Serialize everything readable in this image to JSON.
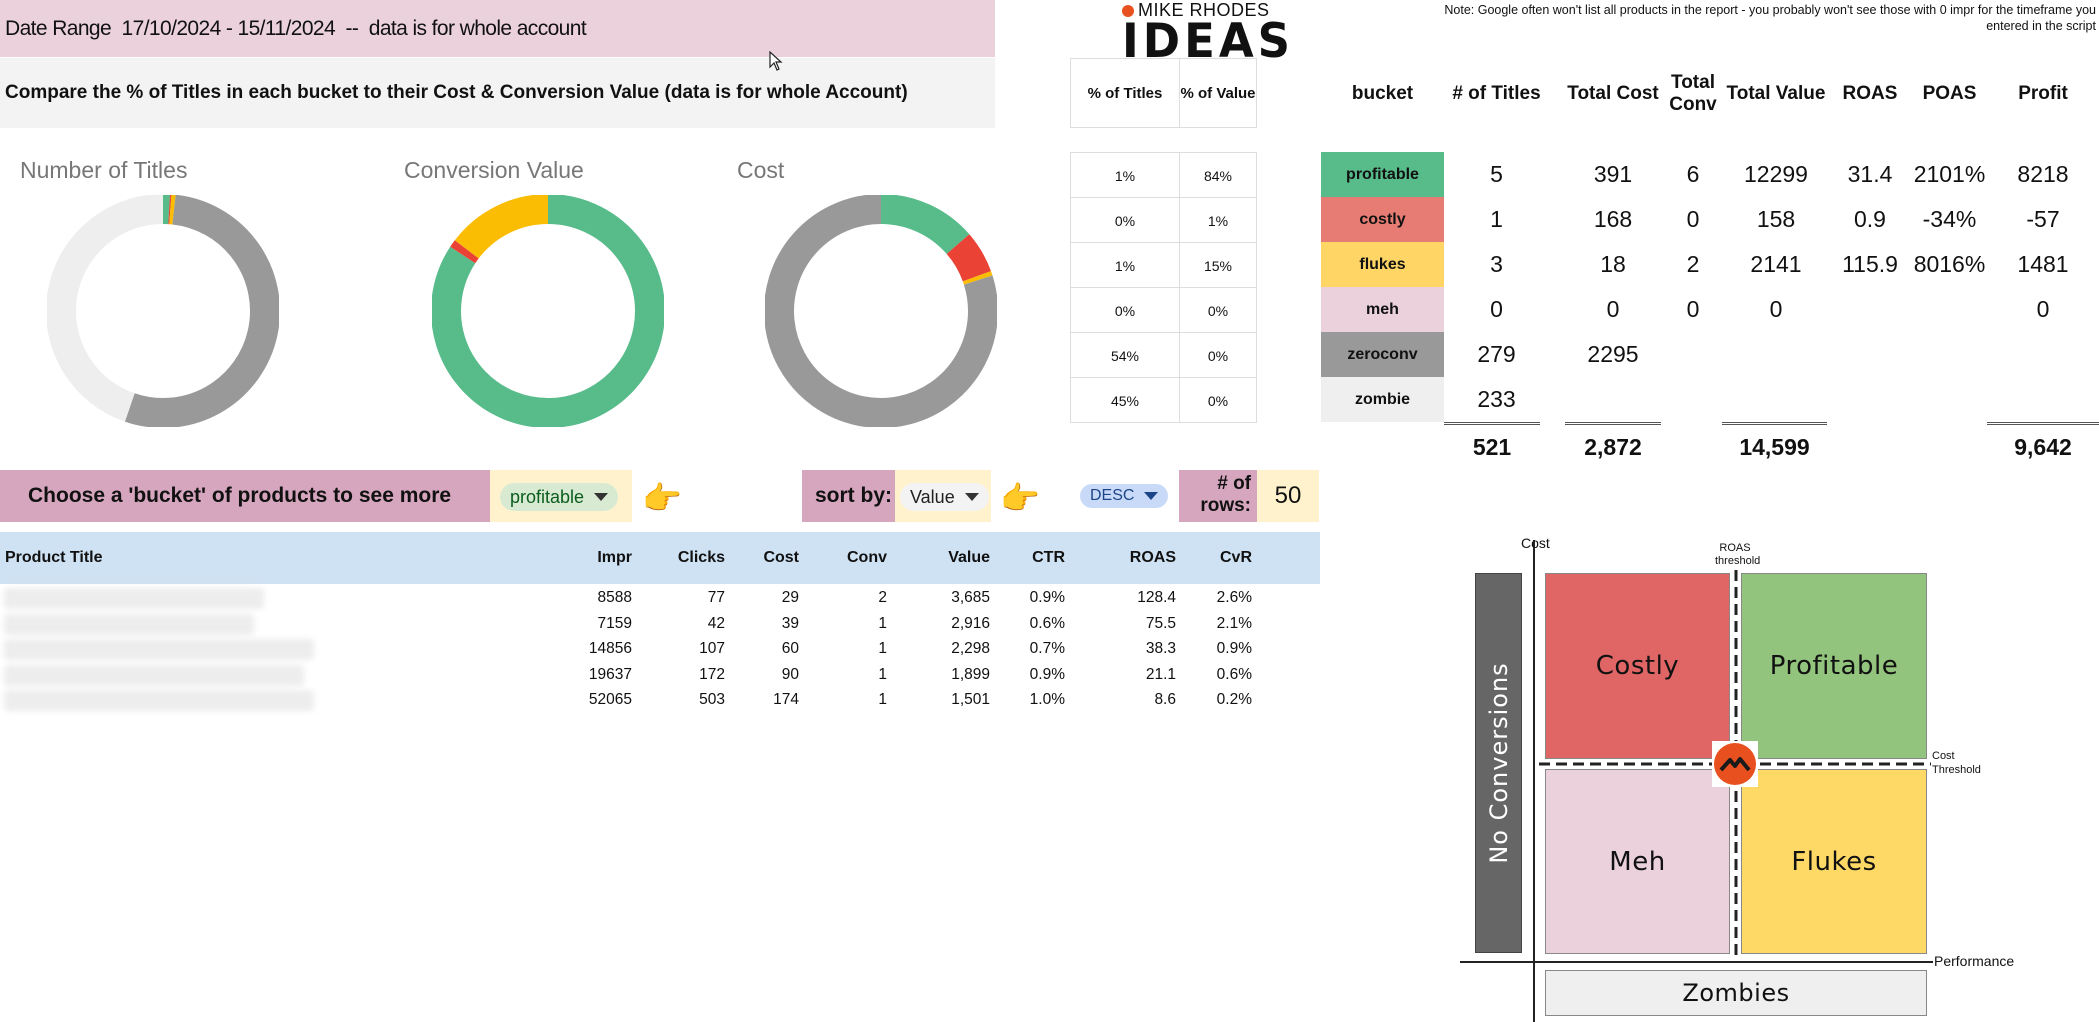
{
  "header": {
    "date_range": "Date Range  17/10/2024 - 15/11/2024  --  data is for whole account",
    "compare_text": "Compare the % of Titles in each bucket to their Cost & Conversion Value (data is for whole Account)"
  },
  "logo": {
    "top": "MIKE RHODES",
    "main": "IDEAS"
  },
  "note": "Note: Google often won't list all products in the report - you probably won't see those with 0 impr for the timeframe you entered in the script",
  "colors": {
    "profitable": "#57bb8a",
    "costly": "#e67c73",
    "flukes": "#ffd666",
    "meh": "#ead1dc",
    "zeroconv": "#999999",
    "zombie": "#efefef",
    "donut_red": "#ea4335",
    "donut_yellow": "#fbbc04",
    "donut_light": "#eeeeee",
    "header_blue": "#cfe2f3"
  },
  "chart_data": [
    {
      "type": "pie",
      "title": "Number of Titles",
      "labels": [
        "profitable",
        "costly",
        "flukes",
        "meh",
        "zeroconv",
        "zombie"
      ],
      "values": [
        5,
        1,
        3,
        0,
        279,
        233
      ]
    },
    {
      "type": "pie",
      "title": "Conversion Value",
      "labels": [
        "profitable",
        "costly",
        "flukes",
        "meh",
        "zeroconv",
        "zombie"
      ],
      "values": [
        12299,
        158,
        2141,
        0,
        0,
        0
      ]
    },
    {
      "type": "pie",
      "title": "Cost",
      "labels": [
        "profitable",
        "costly",
        "flukes",
        "meh",
        "zeroconv",
        "zombie"
      ],
      "values": [
        391,
        168,
        18,
        0,
        2295,
        0
      ]
    }
  ],
  "pct_table": {
    "headers": [
      "% of Titles",
      "% of Value"
    ],
    "rows": [
      [
        "1%",
        "84%"
      ],
      [
        "0%",
        "1%"
      ],
      [
        "1%",
        "15%"
      ],
      [
        "0%",
        "0%"
      ],
      [
        "54%",
        "0%"
      ],
      [
        "45%",
        "0%"
      ]
    ]
  },
  "bucket_table": {
    "headers": [
      "bucket",
      "# of Titles",
      "Total Cost",
      "Total Conv",
      "Total Value",
      "ROAS",
      "POAS",
      "Profit"
    ],
    "rows": [
      {
        "bucket": "profitable",
        "titles": "5",
        "cost": "391",
        "conv": "6",
        "value": "12299",
        "roas": "31.4",
        "poas": "2101%",
        "profit": "8218"
      },
      {
        "bucket": "costly",
        "titles": "1",
        "cost": "168",
        "conv": "0",
        "value": "158",
        "roas": "0.9",
        "poas": "-34%",
        "profit": "-57"
      },
      {
        "bucket": "flukes",
        "titles": "3",
        "cost": "18",
        "conv": "2",
        "value": "2141",
        "roas": "115.9",
        "poas": "8016%",
        "profit": "1481"
      },
      {
        "bucket": "meh",
        "titles": "0",
        "cost": "0",
        "conv": "0",
        "value": "0",
        "roas": "",
        "poas": "",
        "profit": "0"
      },
      {
        "bucket": "zeroconv",
        "titles": "279",
        "cost": "2295",
        "conv": "",
        "value": "",
        "roas": "",
        "poas": "",
        "profit": ""
      },
      {
        "bucket": "zombie",
        "titles": "233",
        "cost": "",
        "conv": "",
        "value": "",
        "roas": "",
        "poas": "",
        "profit": ""
      }
    ],
    "totals": {
      "titles": "521",
      "cost": "2,872",
      "value": "14,599",
      "profit": "9,642"
    }
  },
  "controls": {
    "choose_label": "Choose a 'bucket' of products to see more detail:",
    "bucket_value": "profitable",
    "sort_label": "sort by:",
    "sort_value": "Value",
    "order_value": "DESC",
    "rows_label": "# of rows:",
    "rows_value": "50",
    "pointer": "👉"
  },
  "product_table": {
    "headers": [
      "Product Title",
      "Impr",
      "Clicks",
      "Cost",
      "Conv",
      "Value",
      "CTR",
      "ROAS",
      "CvR"
    ],
    "rows": [
      [
        "",
        "8588",
        "77",
        "29",
        "2",
        "3,685",
        "0.9%",
        "128.4",
        "2.6%"
      ],
      [
        "",
        "7159",
        "42",
        "39",
        "1",
        "2,916",
        "0.6%",
        "75.5",
        "2.1%"
      ],
      [
        "",
        "14856",
        "107",
        "60",
        "1",
        "2,298",
        "0.7%",
        "38.3",
        "0.9%"
      ],
      [
        "",
        "19637",
        "172",
        "90",
        "1",
        "1,899",
        "0.9%",
        "21.1",
        "0.6%"
      ],
      [
        "",
        "52065",
        "503",
        "174",
        "1",
        "1,501",
        "1.0%",
        "8.6",
        "0.2%"
      ]
    ]
  },
  "quadrant": {
    "y_axis": "Cost",
    "x_axis": "Performance",
    "roas_threshold": "ROAS threshold",
    "cost_threshold": "Cost Threshold",
    "costly": "Costly",
    "profitable": "Profitable",
    "meh": "Meh",
    "flukes": "Flukes",
    "no_conversions": "No Conversions",
    "zombies": "Zombies"
  }
}
